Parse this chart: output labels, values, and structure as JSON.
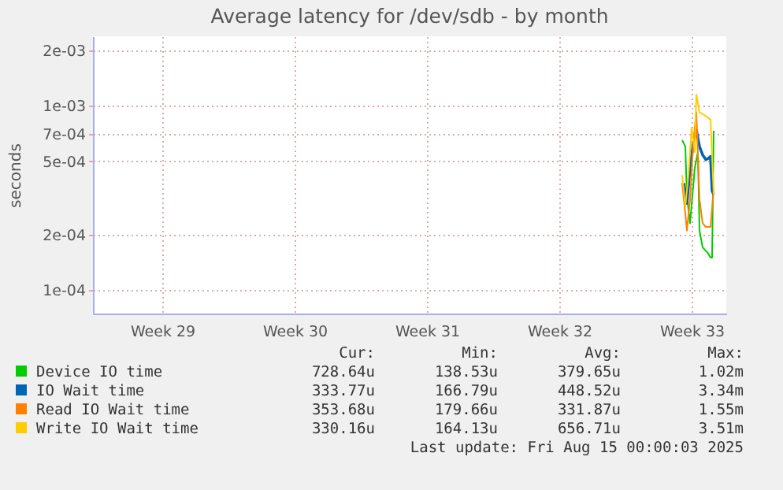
{
  "chart_data": {
    "type": "line",
    "title": "Average latency for /dev/sdb - by month",
    "ylabel": "seconds",
    "log": true,
    "ylim": [
      7.45e-05,
      0.00238
    ],
    "yticks": [
      {
        "value": 0.0001,
        "label": "1e-04"
      },
      {
        "value": 0.0002,
        "label": "2e-04"
      },
      {
        "value": 0.0005,
        "label": "5e-04"
      },
      {
        "value": 0.0007,
        "label": "7e-04"
      },
      {
        "value": 0.001,
        "label": "1e-03"
      },
      {
        "value": 0.002,
        "label": "2e-03"
      }
    ],
    "xlim": [
      "2025-07-13T04:00",
      "2025-08-15T16:00"
    ],
    "xticks": [
      {
        "value": "2025-07-16T20:00",
        "label": "Week 29"
      },
      {
        "value": "2025-07-23T20:00",
        "label": "Week 30"
      },
      {
        "value": "2025-07-30T20:00",
        "label": "Week 31"
      },
      {
        "value": "2025-08-06T20:00",
        "label": "Week 32"
      },
      {
        "value": "2025-08-13T20:00",
        "label": "Week 33"
      }
    ],
    "grid": true,
    "legend": "bottom",
    "line_style": "solid",
    "marker": "none",
    "series": [
      {
        "name": "Device IO time",
        "color": "#00cc00",
        "x": [
          "2025-08-13T08:00",
          "2025-08-13T12:00",
          "2025-08-13T14:00",
          "2025-08-13T18:00",
          "2025-08-14T00:00",
          "2025-08-14T04:00",
          "2025-08-14T06:00",
          "2025-08-14T10:00",
          "2025-08-14T16:00",
          "2025-08-14T20:00",
          "2025-08-14T22:00",
          "2025-08-15T00:00"
        ],
        "values": [
          0.00065,
          0.0006,
          0.000325,
          0.00023,
          0.00046,
          0.00056,
          0.00021,
          0.00017,
          0.00016,
          0.00015,
          0.00015,
          0.00073
        ]
      },
      {
        "name": "IO Wait time",
        "color": "#0066b3",
        "x": [
          "2025-08-13T10:00",
          "2025-08-13T14:00",
          "2025-08-13T18:00",
          "2025-08-13T22:00",
          "2025-08-14T02:00",
          "2025-08-14T06:00",
          "2025-08-14T10:00",
          "2025-08-14T14:00",
          "2025-08-14T18:00",
          "2025-08-14T20:00",
          "2025-08-14T22:00",
          "2025-08-15T00:00"
        ],
        "values": [
          0.00038,
          0.000295,
          0.00046,
          0.00062,
          0.00074,
          0.0006,
          0.00054,
          0.00051,
          0.00052,
          0.00053,
          0.000345,
          0.00033
        ]
      },
      {
        "name": "Read IO Wait time",
        "color": "#ff8000",
        "x": [
          "2025-08-13T08:00",
          "2025-08-13T12:00",
          "2025-08-13T14:00",
          "2025-08-13T18:00",
          "2025-08-13T22:00",
          "2025-08-14T02:00",
          "2025-08-14T06:00",
          "2025-08-14T10:00",
          "2025-08-14T14:00",
          "2025-08-14T20:00",
          "2025-08-15T00:00"
        ],
        "values": [
          0.00038,
          0.00026,
          0.00021,
          0.00031,
          0.00062,
          0.00092,
          0.00031,
          0.00023,
          0.00022,
          0.00022,
          0.00035
        ]
      },
      {
        "name": "Write IO Wait time",
        "color": "#ffcc00",
        "x": [
          "2025-08-13T08:00",
          "2025-08-13T12:00",
          "2025-08-13T16:00",
          "2025-08-13T20:00",
          "2025-08-14T00:00",
          "2025-08-14T02:00",
          "2025-08-14T06:00",
          "2025-08-14T12:00",
          "2025-08-14T20:00",
          "2025-08-15T00:00"
        ],
        "values": [
          0.00042,
          0.000285,
          0.00042,
          0.00076,
          0.00056,
          0.00115,
          0.00092,
          0.00089,
          0.00084,
          0.00033
        ]
      }
    ],
    "annotations": [
      "Cur:",
      "Min:",
      "Avg:",
      "Max:",
      "728.64u",
      "138.53u",
      "379.65u",
      "1.02m",
      "333.77u",
      "166.79u",
      "448.52u",
      "3.34m",
      "353.68u",
      "179.66u",
      "331.87u",
      "1.55m",
      "330.16u",
      "164.13u",
      "656.71u",
      "3.51m",
      "Last update: Fri Aug 15 00:00:03 2025"
    ]
  }
}
